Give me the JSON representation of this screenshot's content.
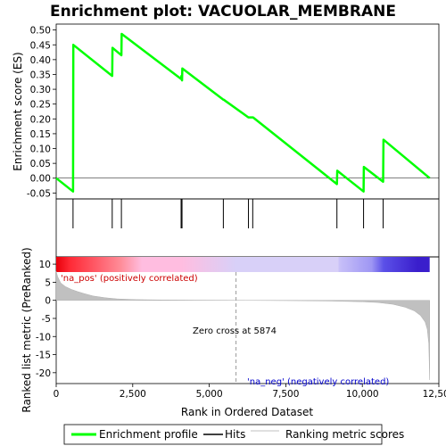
{
  "chart_data": {
    "type": "line",
    "title": "Enrichment plot: VACUOLAR_MEMBRANE",
    "top_panel": {
      "ylabel": "Enrichment score (ES)",
      "ylim": [
        -0.07,
        0.52
      ],
      "yticks": [
        "-0.05",
        "0.00",
        "0.05",
        "0.10",
        "0.15",
        "0.20",
        "0.25",
        "0.30",
        "0.35",
        "0.40",
        "0.45",
        "0.50"
      ],
      "ytick_values": [
        -0.05,
        0.0,
        0.05,
        0.1,
        0.15,
        0.2,
        0.25,
        0.3,
        0.35,
        0.4,
        0.45,
        0.5
      ],
      "series": [
        {
          "name": "Enrichment profile",
          "color": "#00ff00",
          "x": [
            0,
            550,
            560,
            1830,
            1840,
            2130,
            2140,
            4080,
            4090,
            4110,
            4120,
            5460,
            5470,
            6280,
            6290,
            6420,
            6430,
            9170,
            9180,
            10040,
            10050,
            10680,
            10690,
            12200
          ],
          "y": [
            0.0,
            -0.045,
            0.45,
            0.345,
            0.44,
            0.415,
            0.487,
            0.335,
            0.345,
            0.33,
            0.37,
            0.265,
            0.265,
            0.205,
            0.205,
            0.205,
            0.205,
            -0.02,
            0.025,
            -0.045,
            0.038,
            -0.012,
            0.13,
            0.0
          ]
        }
      ]
    },
    "hits": [
      550,
      1830,
      2130,
      4080,
      4110,
      5460,
      6280,
      6420,
      9170,
      10040,
      10680
    ],
    "colorbar": {
      "stops": [
        {
          "x": 0,
          "color": "#e8000a"
        },
        {
          "x": 450,
          "color": "#ff2a36"
        },
        {
          "x": 1300,
          "color": "#ff5b68"
        },
        {
          "x": 2100,
          "color": "#ff8c98"
        },
        {
          "x": 2800,
          "color": "#ffbde0"
        },
        {
          "x": 4100,
          "color": "#ffbde0"
        },
        {
          "x": 5870,
          "color": "#d8d0f8"
        },
        {
          "x": 9200,
          "color": "#d8d0f8"
        },
        {
          "x": 9250,
          "color": "#c8c0f8"
        },
        {
          "x": 10300,
          "color": "#9e96f4"
        },
        {
          "x": 10700,
          "color": "#5b50e8"
        },
        {
          "x": 11800,
          "color": "#3a1ecc"
        },
        {
          "x": 12200,
          "color": "#3a1ecc"
        }
      ]
    },
    "bottom_panel": {
      "ylabel": "Ranked list metric (PreRanked)",
      "ylim": [
        -23,
        12
      ],
      "yticks": [
        "10",
        "5",
        "0",
        "-5",
        "-10",
        "-15",
        "-20"
      ],
      "ytick_values": [
        10,
        5,
        0,
        -5,
        -10,
        -15,
        -20
      ],
      "metric_x": [
        0,
        50,
        150,
        300,
        500,
        700,
        900,
        1200,
        1600,
        2000,
        2600,
        3500,
        4500,
        5874,
        7000,
        8000,
        9000,
        10000,
        10500,
        11000,
        11400,
        11700,
        11900,
        12050,
        12120,
        12170,
        12200
      ],
      "metric_y": [
        8.0,
        6.5,
        4.8,
        3.8,
        3.0,
        2.4,
        1.9,
        1.2,
        0.7,
        0.4,
        0.2,
        0.1,
        0.05,
        0.0,
        -0.05,
        -0.1,
        -0.2,
        -0.4,
        -0.6,
        -1.1,
        -1.9,
        -2.9,
        -4.2,
        -6.0,
        -8.0,
        -12.0,
        -22.0
      ],
      "zero_cross_x": 5874,
      "annotations": {
        "pos": "'na_pos' (positively correlated)",
        "neg": "'na_neg' (negatively correlated)",
        "zero": "Zero cross at 5874"
      }
    },
    "xlabel": "Rank in Ordered Dataset",
    "xlim": [
      0,
      12500
    ],
    "xticks": [
      "0",
      "2,500",
      "5,000",
      "7,500",
      "10,000",
      "12,500"
    ],
    "xtick_values": [
      0,
      2500,
      5000,
      7500,
      10000,
      12500
    ],
    "legend": {
      "position": "bottom",
      "items": [
        {
          "label": "Enrichment profile",
          "color": "#00ff00"
        },
        {
          "label": "Hits",
          "color": "#000000"
        },
        {
          "label": "Ranking metric scores",
          "color": "#c0c0c0"
        }
      ]
    },
    "grid": false
  }
}
